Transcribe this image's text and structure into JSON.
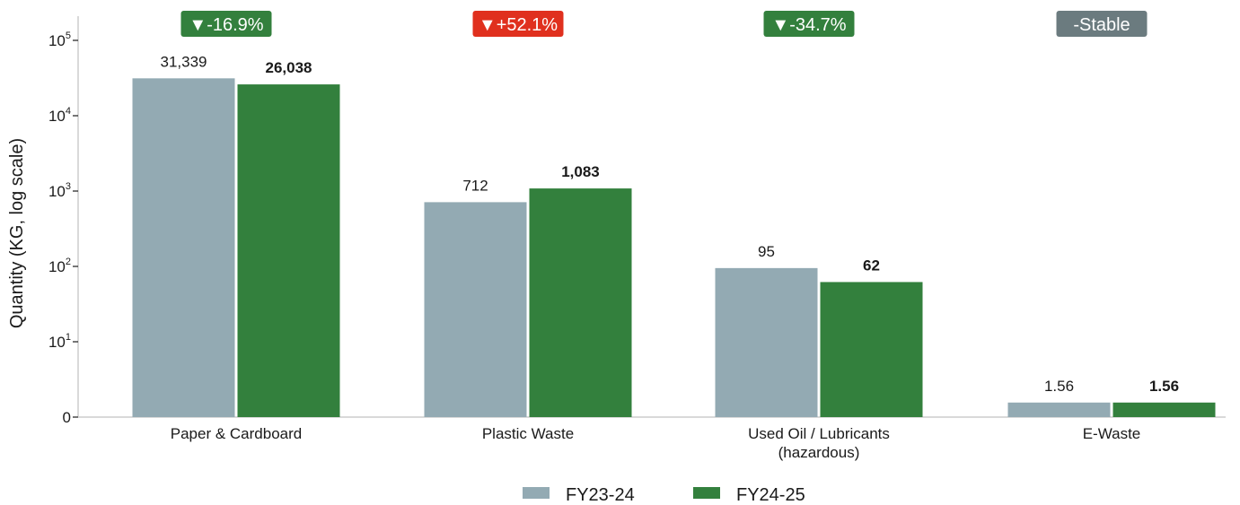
{
  "chart_data": {
    "type": "bar",
    "yscale": "log",
    "ylabel": "Quantity (KG, log scale)",
    "yticks": [
      {
        "base": "0",
        "exp": ""
      },
      {
        "base": "10",
        "exp": "1"
      },
      {
        "base": "10",
        "exp": "2"
      },
      {
        "base": "10",
        "exp": "3"
      },
      {
        "base": "10",
        "exp": "4"
      },
      {
        "base": "10",
        "exp": "5"
      }
    ],
    "categories": [
      [
        "Paper & Cardboard"
      ],
      [
        "Plastic Waste"
      ],
      [
        "Used Oil / Lubricants",
        "(hazardous)"
      ],
      [
        "E-Waste"
      ]
    ],
    "series": [
      {
        "name": "FY23-24",
        "color": "#93aab3",
        "values": [
          31339,
          712,
          95,
          1.56
        ],
        "labels": [
          "31,339",
          "712",
          "95",
          "1.56"
        ]
      },
      {
        "name": "FY24-25",
        "color": "#33803d",
        "values": [
          26038,
          1083,
          62,
          1.56
        ],
        "labels": [
          "26,038",
          "1,083",
          "62",
          "1.56"
        ]
      }
    ],
    "badges": [
      {
        "text": "▼-16.9%",
        "color": "#33803d"
      },
      {
        "text": "▼+52.1%",
        "color": "#e0301e"
      },
      {
        "text": "▼-34.7%",
        "color": "#33803d"
      },
      {
        "text": "-Stable",
        "color": "#6b7b7f"
      }
    ],
    "legend": {
      "position": "bottom-center"
    },
    "grid": false
  }
}
